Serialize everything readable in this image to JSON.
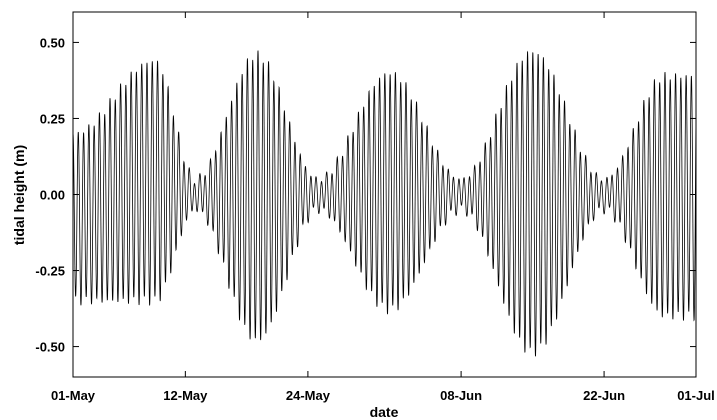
{
  "chart_data": {
    "type": "line",
    "title": "",
    "xlabel": "date",
    "ylabel": "tidal height (m)",
    "x_range": [
      "01-May",
      "01-Jul"
    ],
    "ylim": [
      -0.6,
      0.6
    ],
    "x_ticks": [
      "01-May",
      "12-May",
      "24-May",
      "08-Jun",
      "22-Jun",
      "01-Jul"
    ],
    "y_ticks": [
      "0.50",
      "0.25",
      "0.00",
      "-0.25",
      "-0.50"
    ],
    "grid": false,
    "legend": "none",
    "series": [
      {
        "name": "",
        "color": "#000000",
        "description_points": [
          {
            "date": "01-May",
            "y": 0.2
          },
          {
            "date": "09-May",
            "y": 0.44
          },
          {
            "date": "09-May",
            "y": -0.35
          },
          {
            "date": "13-May",
            "y": 0.05
          },
          {
            "date": "19-May",
            "y": 0.46
          },
          {
            "date": "19-May",
            "y": -0.48
          },
          {
            "date": "25-May",
            "y": 0.05
          },
          {
            "date": "01-Jun",
            "y": 0.4
          },
          {
            "date": "01-Jun",
            "y": -0.38
          },
          {
            "date": "08-Jun",
            "y": 0.05
          },
          {
            "date": "15-Jun",
            "y": 0.47
          },
          {
            "date": "15-Jun",
            "y": -0.52
          },
          {
            "date": "22-Jun",
            "y": 0.05
          },
          {
            "date": "28-Jun",
            "y": 0.39
          },
          {
            "date": "28-Jun",
            "y": -0.4
          }
        ]
      }
    ]
  }
}
